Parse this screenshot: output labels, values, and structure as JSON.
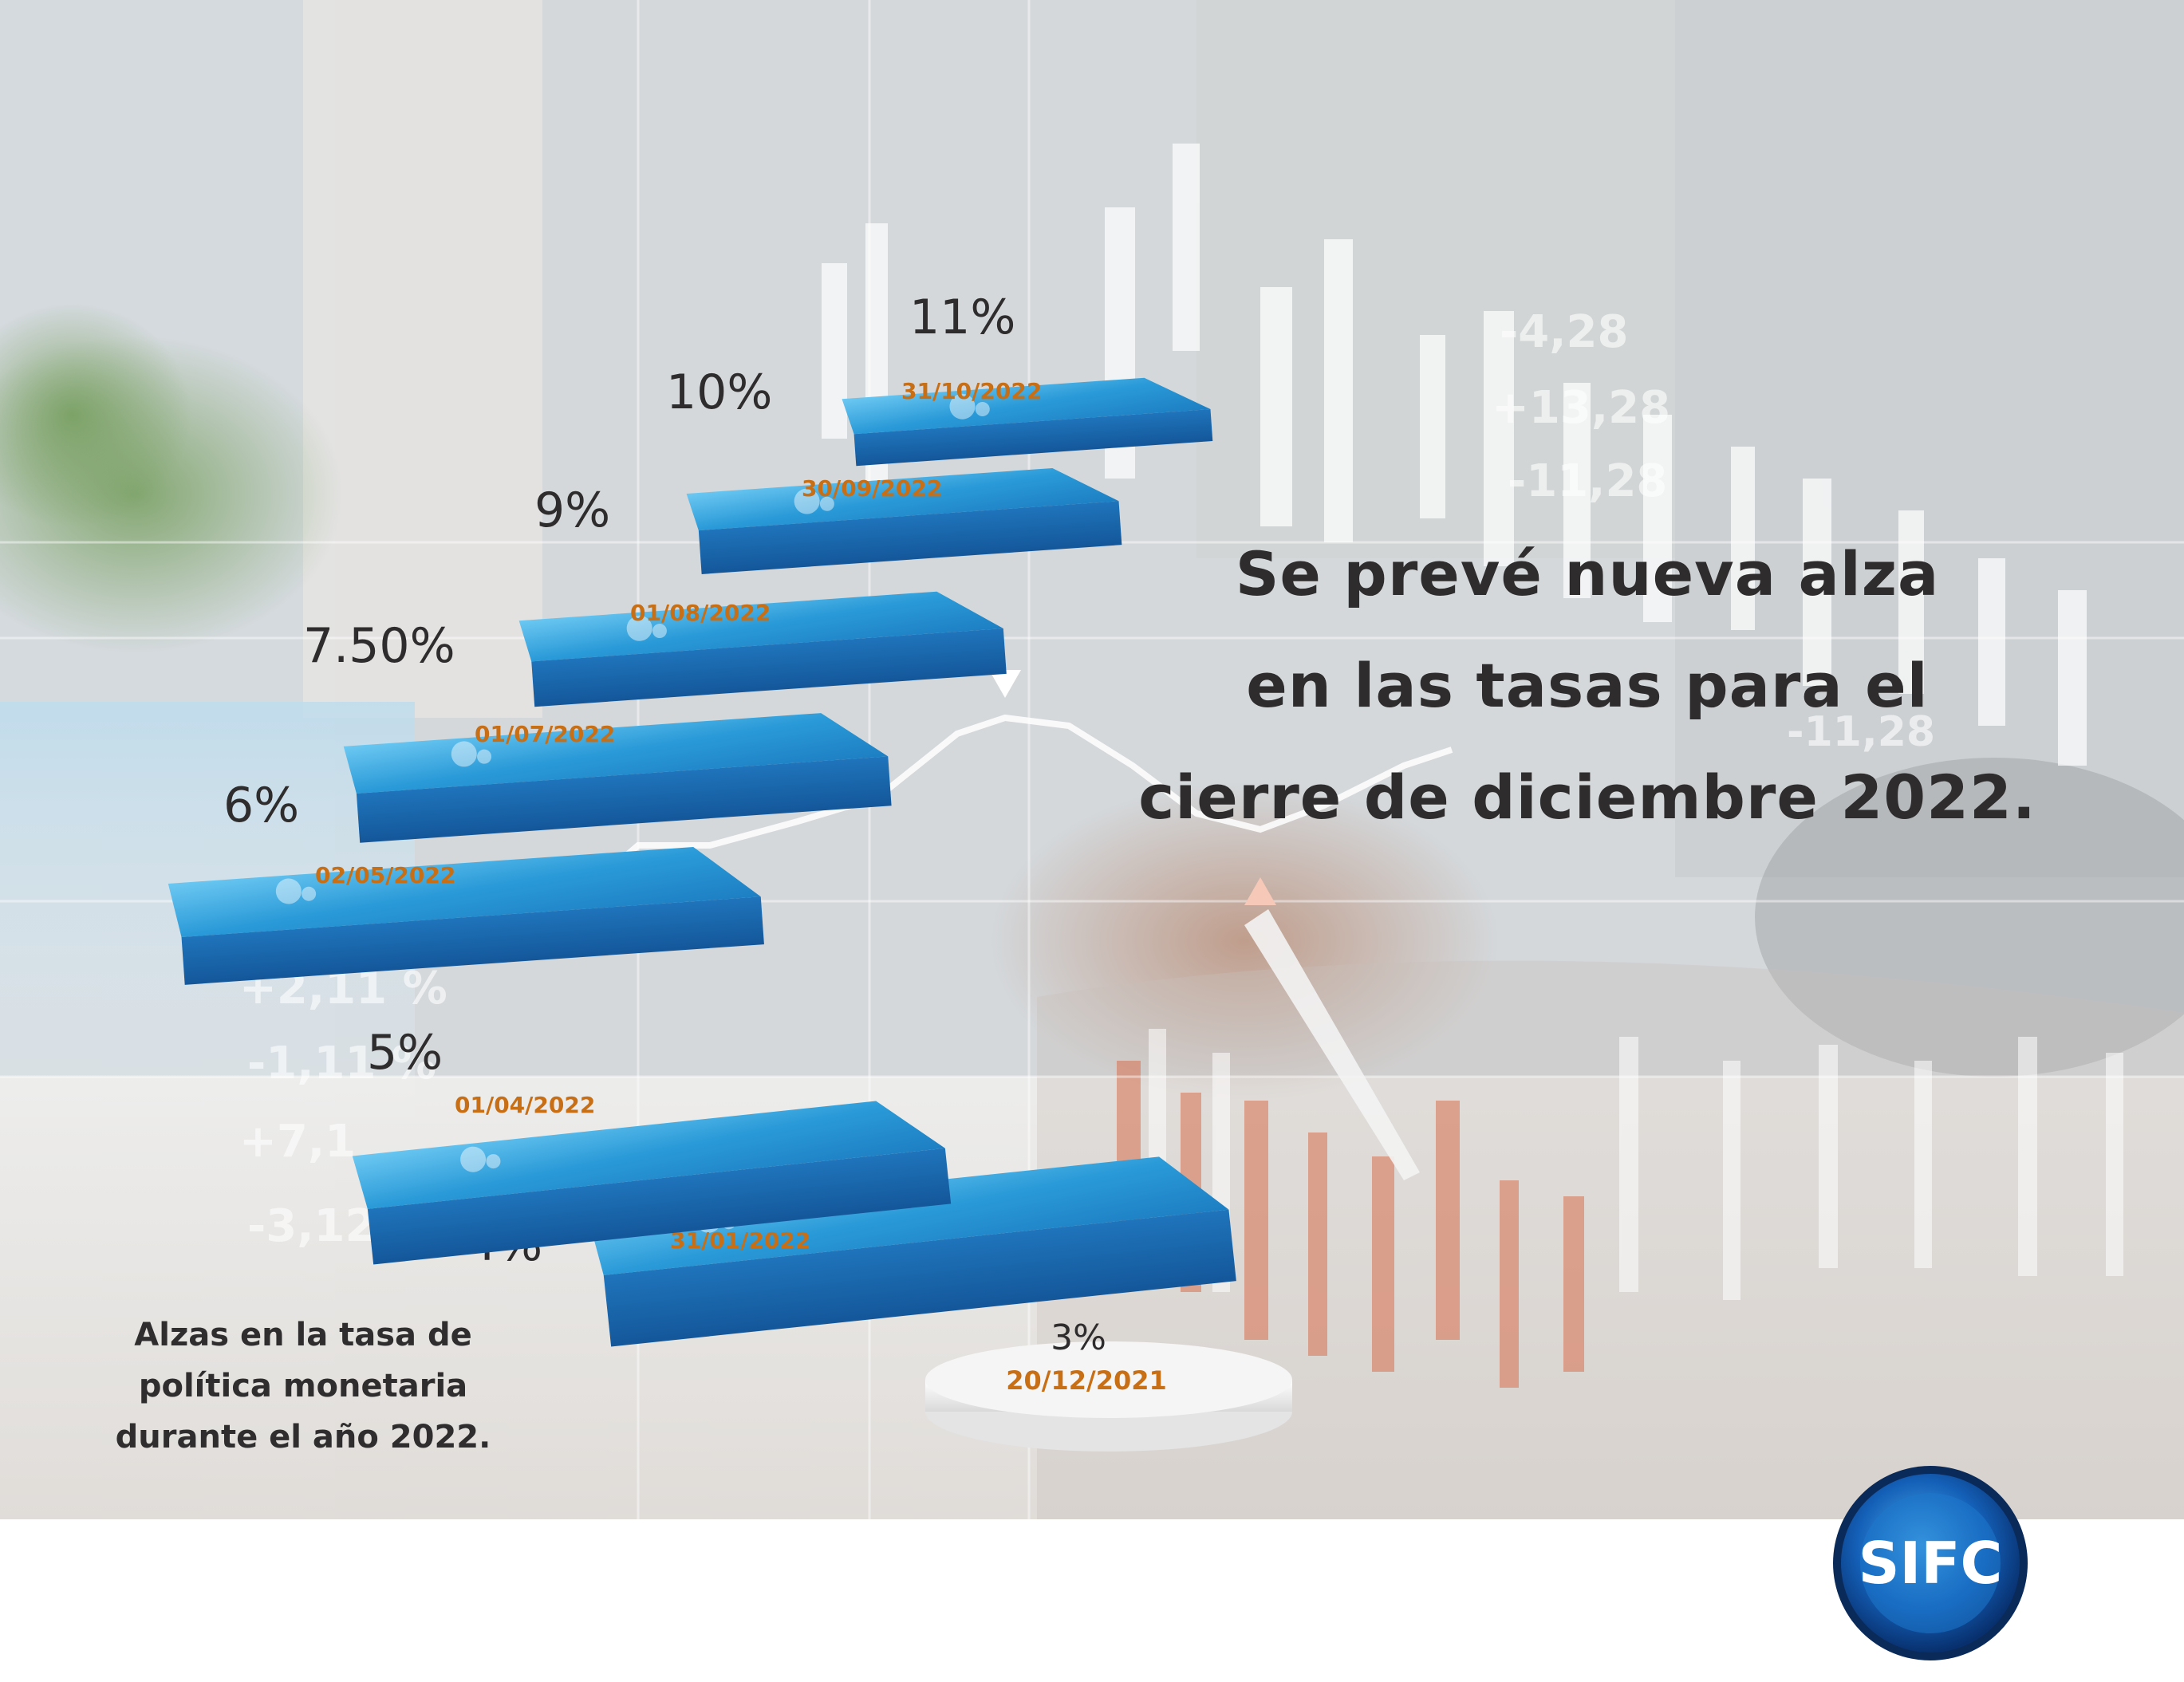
{
  "headline": {
    "line1": "Se prevé nueva alza",
    "line2": "en las tasas para el",
    "line3": "cierre de diciembre 2022."
  },
  "caption": {
    "line1": "Alzas en la tasa de",
    "line2": "política monetaria",
    "line3": "durante el año 2022."
  },
  "logo": {
    "text": "SIFC"
  },
  "background_labels": [
    "-4,28",
    "+13,28",
    "-11,28",
    "-11,28",
    "+2,11 %",
    "-1,11 %",
    "+7,1",
    "-3,12 %"
  ],
  "colors": {
    "step_top": "#2a9ad8",
    "step_front": "#1a64ac",
    "date": "#c86e14",
    "text": "#2e2c2c"
  },
  "chart_data": {
    "type": "bar",
    "title": "",
    "xlabel": "",
    "ylabel": "",
    "series": [
      {
        "values": [
          3,
          4,
          5,
          6,
          7.5,
          9,
          10,
          11
        ],
        "value_labels": [
          "3%",
          "4%",
          "5%",
          "6%",
          "7.50%",
          "9%",
          "10%",
          "11%"
        ],
        "dates": [
          "20/12/2021",
          "31/01/2022",
          "01/04/2022",
          "02/05/2022",
          "01/07/2022",
          "01/08/2022",
          "30/09/2022",
          "31/10/2022"
        ]
      }
    ]
  }
}
